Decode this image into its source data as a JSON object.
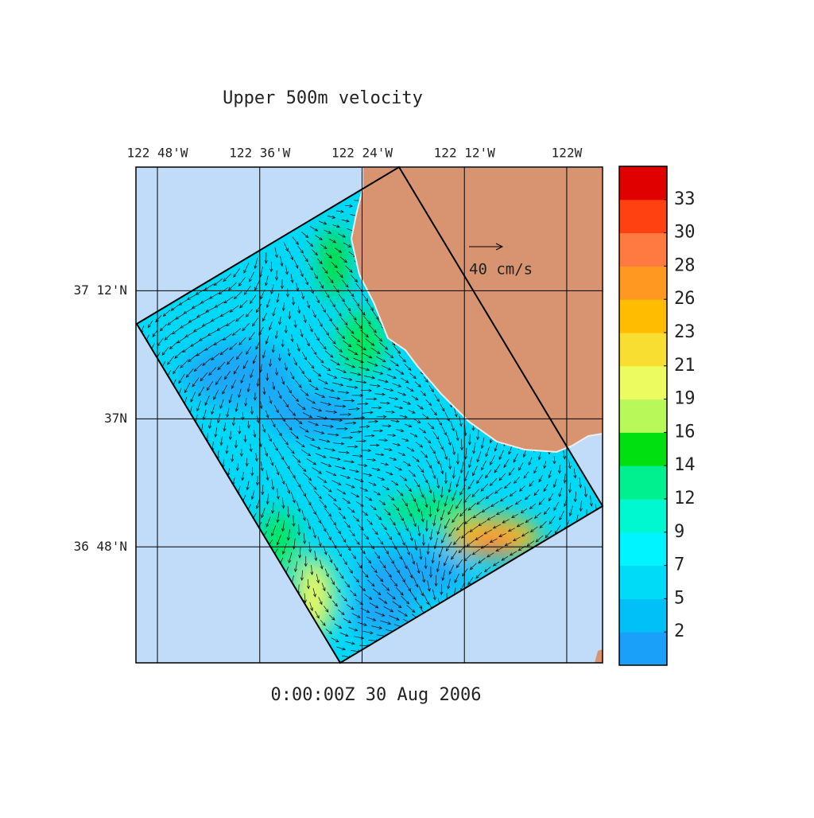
{
  "chart_data": {
    "type": "map",
    "title": "Upper 500m velocity",
    "timestamp": "0:00:00Z  30 Aug 2006",
    "scale_arrow": {
      "label": "40 cm/s"
    },
    "xlim": [
      -122.842,
      -121.93
    ],
    "ylim": [
      36.619,
      37.393
    ],
    "xticks": [
      {
        "value": -122.8,
        "label": "122 48'W"
      },
      {
        "value": -122.6,
        "label": "122 36'W"
      },
      {
        "value": -122.4,
        "label": "122 24'W"
      },
      {
        "value": -122.2,
        "label": "122 12'W"
      },
      {
        "value": -122.0,
        "label": "122W"
      }
    ],
    "yticks": [
      {
        "value": 37.2,
        "label": "37 12'N"
      },
      {
        "value": 37,
        "label": "37N"
      },
      {
        "value": 36.8,
        "label": "36 48'N"
      }
    ],
    "grid": true,
    "colorbar": {
      "lim": [
        0,
        35
      ],
      "colors": [
        "#1aa0f8",
        "#00c0f8",
        "#00dcf8",
        "#00f4ff",
        "#00f8d0",
        "#00f090",
        "#00e010",
        "#b8f858",
        "#ecfc60",
        "#f8de30",
        "#ffbc00",
        "#ff9820",
        "#ff7a40",
        "#ff4010",
        "#e00000"
      ],
      "ticks": [
        {
          "value": 2.333,
          "label": "2"
        },
        {
          "value": 4.667,
          "label": "5"
        },
        7,
        {
          "value": 9.333,
          "label": "9"
        },
        {
          "value": 11.667,
          "label": "12"
        },
        14,
        {
          "value": 16.333,
          "label": "16"
        },
        {
          "value": 18.667,
          "label": "19"
        },
        21,
        {
          "value": 23.333,
          "label": "23"
        },
        {
          "value": 25.667,
          "label": "26"
        },
        28,
        {
          "value": 30.333,
          "label": "30"
        },
        {
          "value": 32.667,
          "label": "33"
        }
      ]
    }
  }
}
